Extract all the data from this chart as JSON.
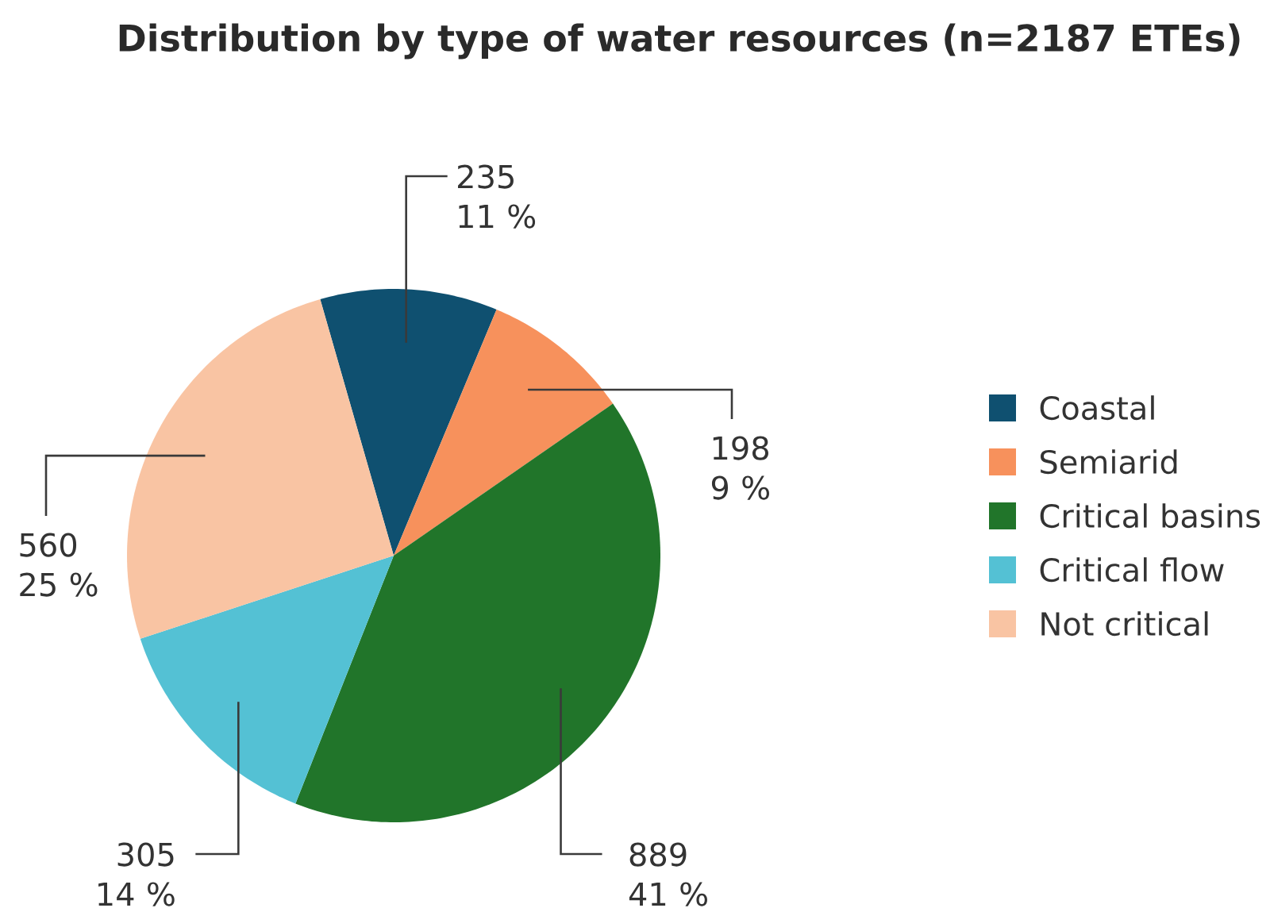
{
  "chart_data": {
    "type": "pie",
    "title": "Distribution by type of water resources (n=2187 ETEs)",
    "categories": [
      "Coastal",
      "Semiarid",
      "Critical basins",
      "Critical flow",
      "Not critical"
    ],
    "values": [
      235,
      198,
      889,
      305,
      560
    ],
    "colors": [
      "#0f5070",
      "#f7915c",
      "#21752a",
      "#54c1d4",
      "#f9c4a3"
    ],
    "value_labels": [
      "235 11 %",
      "198 9 %",
      "889 41 %",
      "305 14 %",
      "560 25 %"
    ],
    "legend": "right"
  }
}
